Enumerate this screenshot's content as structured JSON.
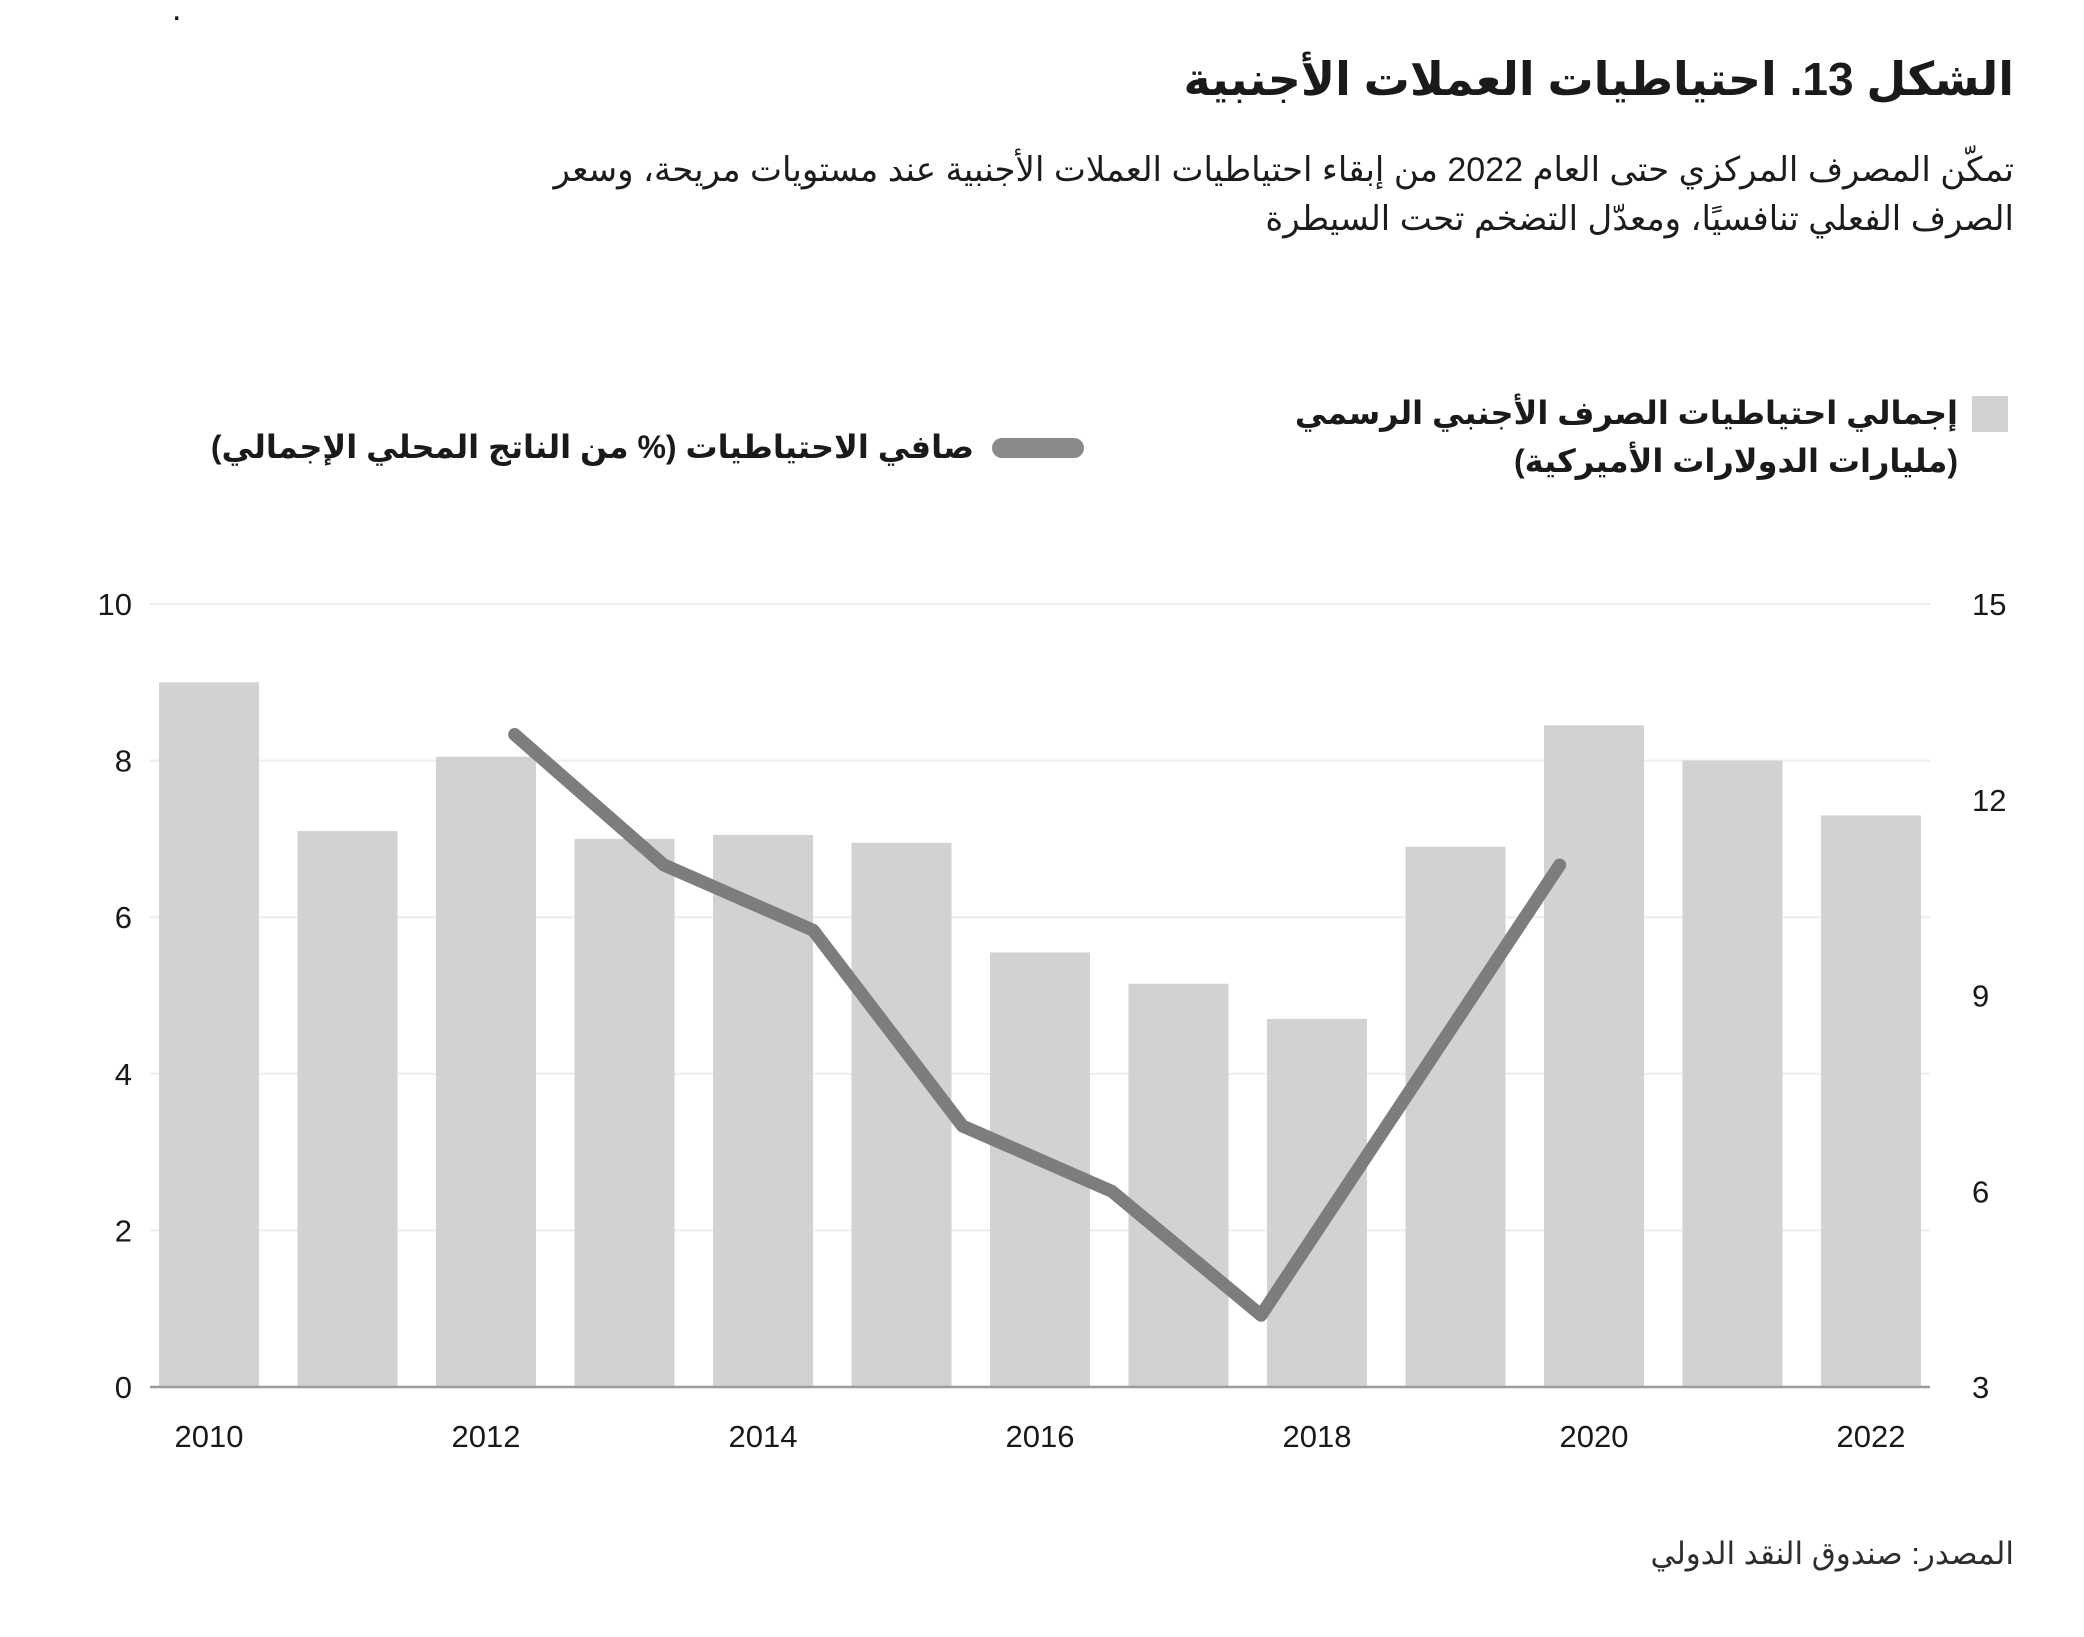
{
  "page": {
    "stray_dot": "."
  },
  "title": "الشكل 13. احتياطيات العملات الأجنبية",
  "subtitle": {
    "line1": "تمكّن المصرف المركزي حتى العام 2022 من إبقاء احتياطيات العملات الأجنبية عند مستويات مريحة، وسعر",
    "line2": "الصرف الفعلي تنافسيًا، ومعدّل التضخم تحت السيطرة"
  },
  "legend": {
    "bars": {
      "label_line1": "إجمالي احتياطيات الصرف الأجنبي الرسمي",
      "label_line2": "(مليارات الدولارات الأميركية)",
      "swatch_color": "#d2d2d2"
    },
    "line": {
      "label": "صافي الاحتياطيات (% من الناتج المحلي الإجمالي)",
      "swatch_color": "#8a8a8a"
    }
  },
  "source": "المصدر: صندوق النقد الدولي",
  "colors": {
    "bar_fill": "#d2d2d2",
    "line_stroke": "#7d7d7d",
    "gridline": "#ededed",
    "zero_axis": "#9c9c9c",
    "tick_text": "#191919"
  },
  "chart_data": {
    "type": "bar",
    "title": "احتياطيات العملات الأجنبية",
    "categories": [
      2010,
      2011,
      2012,
      2013,
      2014,
      2015,
      2016,
      2017,
      2018,
      2019,
      2020,
      2021,
      2022
    ],
    "series": [
      {
        "name": "إجمالي احتياطيات الصرف الأجنبي الرسمي (مليارات الدولارات الأميركية)",
        "type": "bar",
        "axis": "left",
        "values": [
          9.0,
          7.1,
          8.05,
          7.0,
          7.05,
          6.95,
          5.55,
          5.15,
          4.7,
          6.9,
          8.45,
          8.0,
          7.3
        ]
      },
      {
        "name": "صافي الاحتياطيات (% من الناتج المحلي الإجمالي)",
        "type": "line",
        "axis": "right",
        "points": [
          {
            "year": 2012,
            "value": 13.0
          },
          {
            "year": 2013,
            "value": 11.0
          },
          {
            "year": 2014,
            "value": 10.0
          },
          {
            "year": 2015,
            "value": 7.0
          },
          {
            "year": 2016,
            "value": 6.0
          },
          {
            "year": 2017,
            "value": 4.1
          },
          {
            "year": 2019,
            "value": 11.0
          }
        ]
      }
    ],
    "left_axis": {
      "ticks": [
        0,
        2,
        4,
        6,
        8,
        10
      ],
      "range": [
        0,
        10
      ]
    },
    "right_axis": {
      "ticks": [
        3,
        6,
        9,
        12,
        15
      ],
      "range": [
        3,
        15
      ]
    },
    "x_ticks": [
      2010,
      2012,
      2014,
      2016,
      2018,
      2020,
      2022
    ],
    "grid": true,
    "legend_position": "top"
  }
}
